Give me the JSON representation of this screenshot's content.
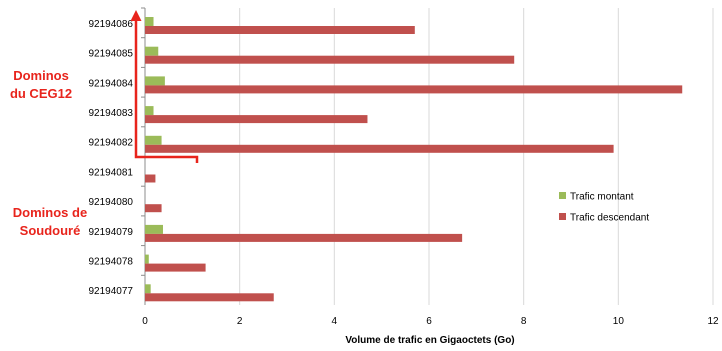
{
  "chart_data": {
    "type": "bar",
    "orientation": "horizontal",
    "xlabel": "Volume de trafic en Gigaoctets (Go)",
    "xlim": [
      0,
      12
    ],
    "xticks": [
      0,
      2,
      4,
      6,
      8,
      10,
      12
    ],
    "grid": "vertical",
    "legend_position": "right",
    "categories": [
      "92194086",
      "92194085",
      "92194084",
      "92194083",
      "92194082",
      "92194081",
      "92194080",
      "92194079",
      "92194078",
      "92194077"
    ],
    "series": [
      {
        "name": "Trafic montant",
        "color": "#9bbb59",
        "values": [
          0.18,
          0.28,
          0.42,
          0.18,
          0.35,
          0.0,
          0.0,
          0.38,
          0.08,
          0.12
        ]
      },
      {
        "name": "Trafic descendant",
        "color": "#c0504d",
        "values": [
          5.7,
          7.8,
          11.35,
          4.7,
          9.9,
          0.22,
          0.35,
          6.7,
          1.28,
          2.72
        ]
      }
    ]
  },
  "annotations": {
    "group_ceg12": [
      "Dominos",
      "du CEG12"
    ],
    "group_soudoure": [
      "Dominos de",
      "Soudouré"
    ],
    "bracket_color": "#e8241c"
  }
}
